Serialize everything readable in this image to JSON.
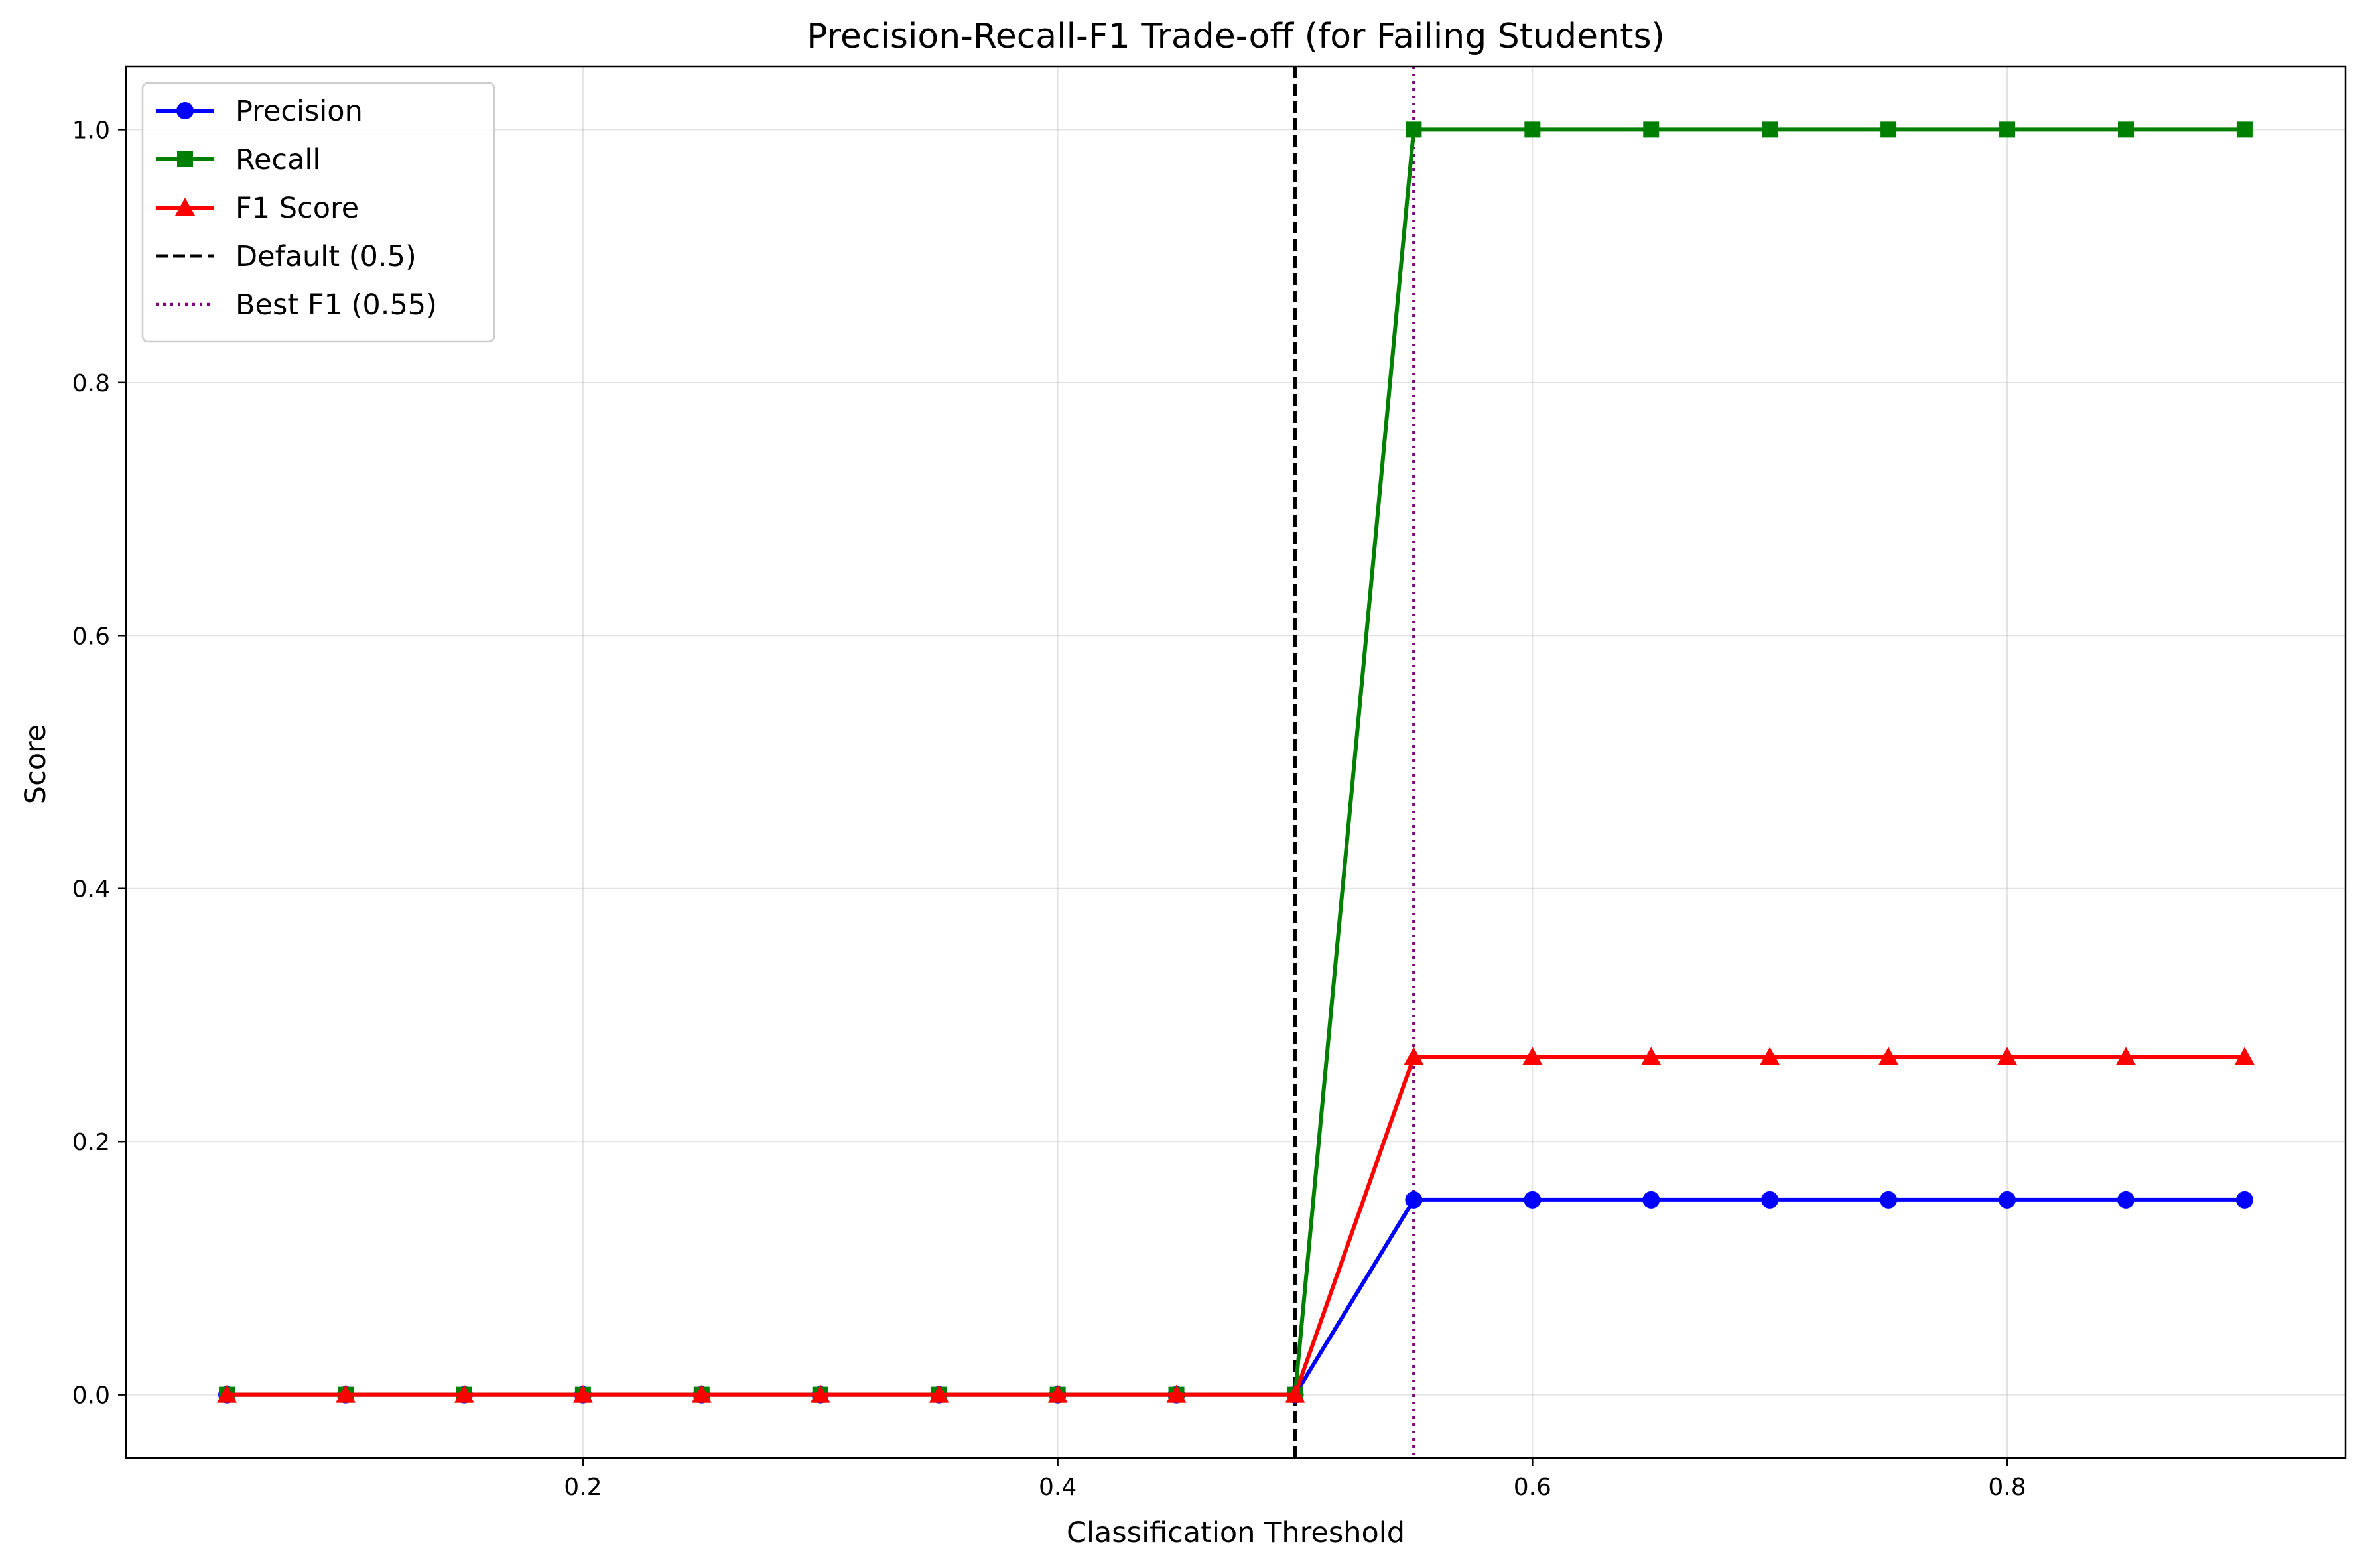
{
  "chart_data": {
    "type": "line",
    "title": "Precision-Recall-F1 Trade-off (for Failing Students)",
    "xlabel": "Classification Threshold",
    "ylabel": "Score",
    "xlim": [
      0.0075,
      0.9425
    ],
    "ylim": [
      -0.05,
      1.05
    ],
    "xticks": [
      0.2,
      0.4,
      0.6,
      0.8
    ],
    "xtick_labels": [
      "0.2",
      "0.4",
      "0.6",
      "0.8"
    ],
    "yticks": [
      0.0,
      0.2,
      0.4,
      0.6,
      0.8,
      1.0
    ],
    "ytick_labels": [
      "0.0",
      "0.2",
      "0.4",
      "0.6",
      "0.8",
      "1.0"
    ],
    "grid": true,
    "legend_position": "top-left",
    "x": [
      0.05,
      0.1,
      0.15,
      0.2,
      0.25,
      0.3,
      0.35,
      0.4,
      0.45,
      0.5,
      0.55,
      0.6,
      0.65,
      0.7,
      0.75,
      0.8,
      0.85,
      0.9
    ],
    "series": [
      {
        "name": "Precision",
        "color": "#0000ff",
        "marker": "circle",
        "values": [
          0,
          0,
          0,
          0,
          0,
          0,
          0,
          0,
          0,
          0,
          0.154,
          0.154,
          0.154,
          0.154,
          0.154,
          0.154,
          0.154,
          0.154
        ]
      },
      {
        "name": "Recall",
        "color": "#008000",
        "marker": "square",
        "values": [
          0,
          0,
          0,
          0,
          0,
          0,
          0,
          0,
          0,
          0,
          1.0,
          1.0,
          1.0,
          1.0,
          1.0,
          1.0,
          1.0,
          1.0
        ]
      },
      {
        "name": "F1 Score",
        "color": "#ff0000",
        "marker": "triangle",
        "values": [
          0,
          0,
          0,
          0,
          0,
          0,
          0,
          0,
          0,
          0,
          0.267,
          0.267,
          0.267,
          0.267,
          0.267,
          0.267,
          0.267,
          0.267
        ]
      }
    ],
    "reference_lines": [
      {
        "name": "Default (0.5)",
        "x": 0.5,
        "color": "#000000",
        "style": "dashed"
      },
      {
        "name": "Best F1 (0.55)",
        "x": 0.55,
        "color": "#800080",
        "style": "dotted"
      }
    ]
  }
}
